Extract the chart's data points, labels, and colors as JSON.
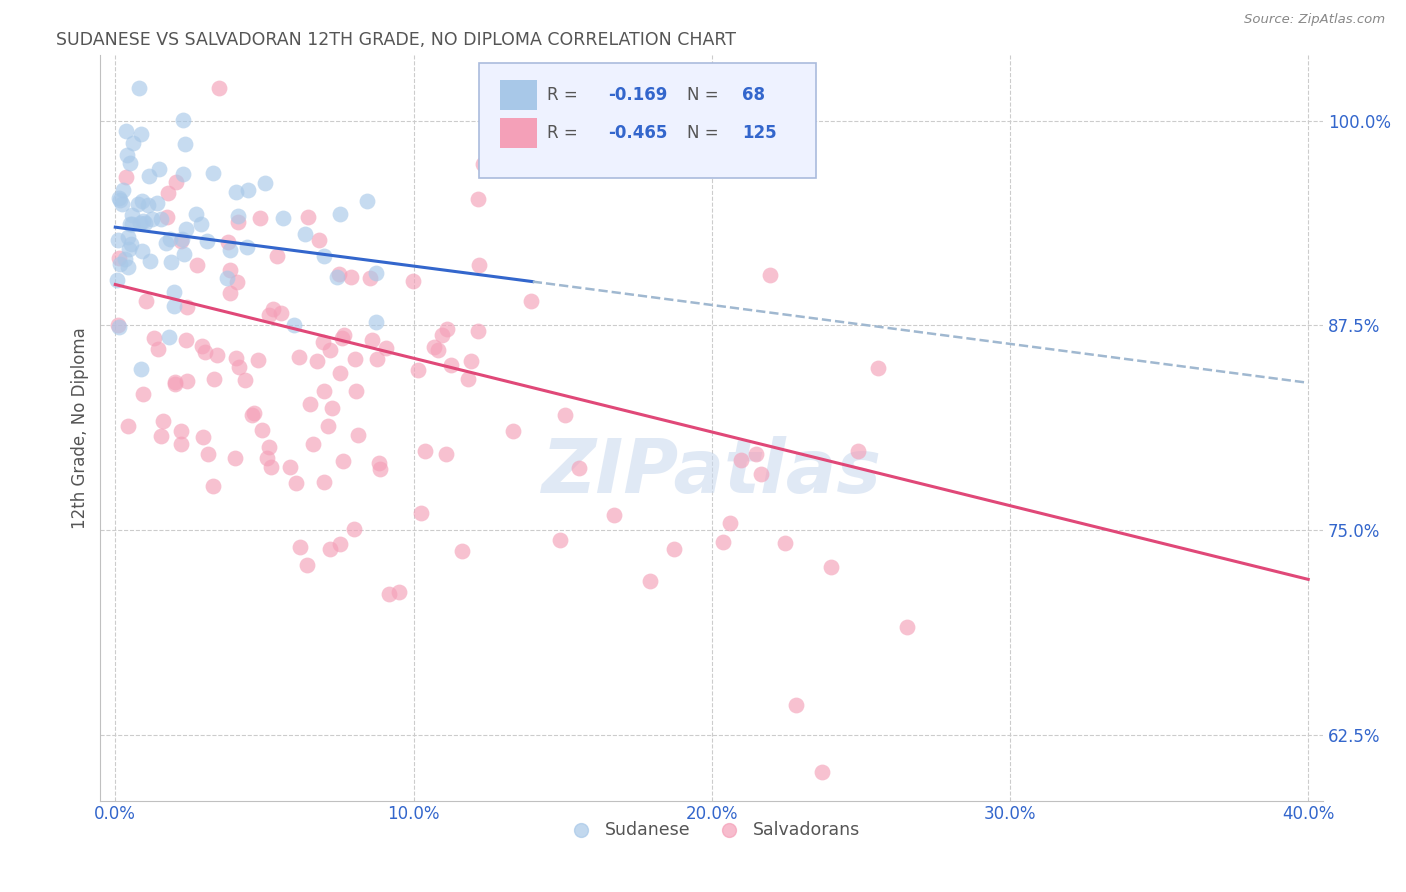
{
  "title": "SUDANESE VS SALVADORAN 12TH GRADE, NO DIPLOMA CORRELATION CHART",
  "source": "Source: ZipAtlas.com",
  "xlabel_ticks": [
    "0.0%",
    "10.0%",
    "20.0%",
    "30.0%",
    "40.0%"
  ],
  "xlabel_tick_vals": [
    0.0,
    0.1,
    0.2,
    0.3,
    0.4
  ],
  "ylabel_ticks": [
    "62.5%",
    "75.0%",
    "87.5%",
    "100.0%"
  ],
  "ylabel_tick_vals": [
    0.625,
    0.75,
    0.875,
    1.0
  ],
  "ylabel_label": "12th Grade, No Diploma",
  "xlim": [
    -0.005,
    0.405
  ],
  "ylim": [
    0.585,
    1.04
  ],
  "sudanese_R": -0.169,
  "sudanese_N": 68,
  "salvadoran_R": -0.465,
  "salvadoran_N": 125,
  "sudanese_color": "#a8c8e8",
  "salvadoran_color": "#f4a0b8",
  "sudanese_line_color": "#3366cc",
  "salvadoran_line_color": "#e04878",
  "dashed_line_color": "#a0b8d0",
  "background_color": "#ffffff",
  "grid_color": "#cccccc",
  "title_color": "#555555",
  "axis_color": "#3366cc",
  "watermark_color": "#c8d8ee",
  "legend_box_color": "#eef2ff",
  "legend_border_color": "#aabbdd",
  "sudanese_seed": 42,
  "salvadoran_seed": 77
}
